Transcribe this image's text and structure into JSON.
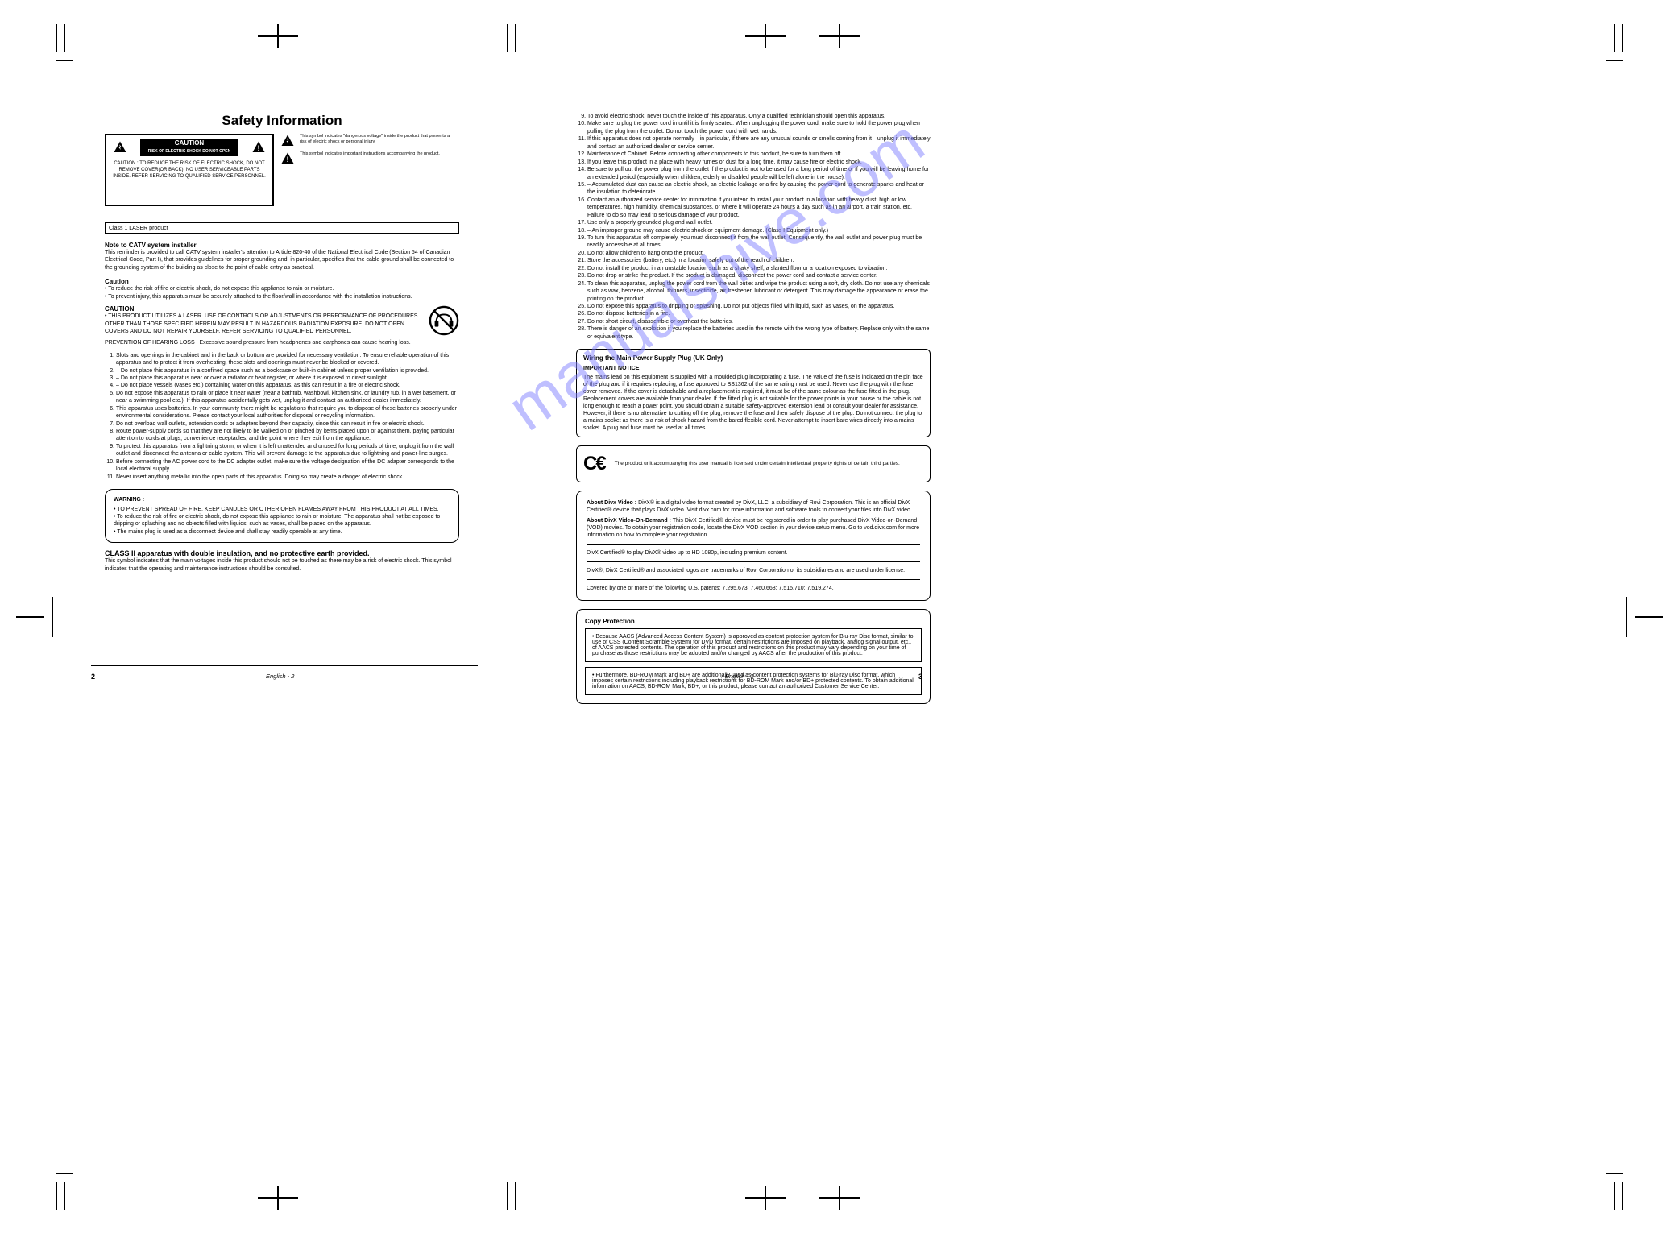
{
  "watermark": "manualshive.com",
  "left_page": {
    "title": "Safety Information",
    "caution_box": {
      "label_line1": "CAUTION",
      "label_line2": "RISK OF ELECTRIC SHOCK DO NOT OPEN",
      "body": "CAUTION : TO REDUCE THE RISK OF ELECTRIC SHOCK, DO NOT REMOVE COVER(OR BACK). NO USER SERVICEABLE PARTS INSIDE. REFER SERVICING TO QUALIFIED SERVICE PERSONNEL."
    },
    "icon_desc_1": "This symbol indicates \"dangerous voltage\" inside the product that presents a risk of electric shock or personal injury.",
    "icon_desc_2": "This symbol indicates important instructions accompanying the product.",
    "bar_text": "Class 1 LASER product",
    "note": "Note to CATV system installer",
    "note_body": "This reminder is provided to call CATV system installer's attention to Article 820-40 of the National Electrical Code (Section 54 of Canadian Electrical Code, Part I), that provides guidelines for proper grounding and, in particular, specifies that the cable ground shall be connected to the grounding system of the building as close to the point of cable entry as practical.",
    "caution_head": "Caution",
    "caution_body": "• To reduce the risk of fire or electric shock, do not expose this appliance to rain or moisture.\n• To prevent injury, this apparatus must be securely attached to the floor/wall in accordance with the installation instructions.",
    "caution2_head": "CAUTION",
    "caution2_body": "• THIS PRODUCT UTILIZES A LASER. USE OF CONTROLS OR ADJUSTMENTS OR PERFORMANCE OF PROCEDURES OTHER THAN THOSE SPECIFIED HEREIN MAY RESULT IN HAZARDOUS RADIATION EXPOSURE. DO NOT OPEN COVERS AND DO NOT REPAIR YOURSELF. REFER SERVICING TO QUALIFIED PERSONNEL.",
    "ol_items": [
      "Slots and openings in the cabinet and in the back or bottom are provided for necessary ventilation. To ensure reliable operation of this apparatus and to protect it from overheating, these slots and openings must never be blocked or covered.",
      "– Do not place this apparatus in a confined space such as a bookcase or built-in cabinet unless proper ventilation is provided.",
      "– Do not place this apparatus near or over a radiator or heat register, or where it is exposed to direct sunlight.",
      "– Do not place vessels (vases etc.) containing water on this apparatus, as this can result in a fire or electric shock.",
      "Do not expose this apparatus to rain or place it near water (near a bathtub, washbowl, kitchen sink, or laundry tub, in a wet basement, or near a swimming pool etc.). If this apparatus accidentally gets wet, unplug it and contact an authorized dealer immediately.",
      "This apparatus uses batteries. In your community there might be regulations that require you to dispose of these batteries properly under environmental considerations. Please contact your local authorities for disposal or recycling information.",
      "Do not overload wall outlets, extension cords or adapters beyond their capacity, since this can result in fire or electric shock.",
      "Route power-supply cords so that they are not likely to be walked on or pinched by items placed upon or against them, paying particular attention to cords at plugs, convenience receptacles, and the point where they exit from the appliance.",
      "To protect this apparatus from a lightning storm, or when it is left unattended and unused for long periods of time, unplug it from the wall outlet and disconnect the antenna or cable system. This will prevent damage to the apparatus due to lightning and power-line surges.",
      "Before connecting the AC power cord to the DC adapter outlet, make sure the voltage designation of the DC adapter corresponds to the local electrical supply.",
      "Never insert anything metallic into the open parts of this apparatus. Doing so may create a danger of electric shock."
    ],
    "headset_warning": "PREVENTION OF HEARING LOSS : Excessive sound pressure from headphones and earphones can cause hearing loss.",
    "class2_head": "CLASS II apparatus with double insulation, and no protective earth provided.",
    "class2_body": "This symbol indicates that the main voltages inside this product should not be touched as there may be a risk of electric shock. This symbol indicates that the operating and maintenance instructions should be consulted.",
    "rounded_box": {
      "head": "WARNING :",
      "body": "• TO PREVENT SPREAD OF FIRE, KEEP CANDLES OR OTHER OPEN FLAMES AWAY FROM THIS PRODUCT AT ALL TIMES.\n• To reduce the risk of fire or electric shock, do not expose this appliance to rain or moisture. The apparatus shall not be exposed to dripping or splashing and no objects filled with liquids, such as vases, shall be placed on the apparatus.\n• The mains plug is used as a disconnect device and shall stay readily operable at any time."
    },
    "footer": "English - 2",
    "page_num": "2"
  },
  "right_page": {
    "ol_items": [
      "To avoid electric shock, never touch the inside of this apparatus. Only a qualified technician should open this apparatus.",
      "Make sure to plug the power cord in until it is firmly seated. When unplugging the power cord, make sure to hold the power plug when pulling the plug from the outlet. Do not touch the power cord with wet hands.",
      "If this apparatus does not operate normally—in particular, if there are any unusual sounds or smells coming from it—unplug it immediately and contact an authorized dealer or service center.",
      "Maintenance of Cabinet. Before connecting other components to this product, be sure to turn them off.",
      "If you leave this product in a place with heavy fumes or dust for a long time, it may cause fire or electric shock.",
      "Be sure to pull out the power plug from the outlet if the product is not to be used for a long period of time or if you will be leaving home for an extended period (especially when children, elderly or disabled people will be left alone in the house).",
      "– Accumulated dust can cause an electric shock, an electric leakage or a fire by causing the power cord to generate sparks and heat or the insulation to deteriorate.",
      "Contact an authorized service center for information if you intend to install your product in a location with heavy dust, high or low temperatures, high humidity, chemical substances, or where it will operate 24 hours a day such as in an airport, a train station, etc. Failure to do so may lead to serious damage of your product.",
      "Use only a properly grounded plug and wall outlet.",
      "– An improper ground may cause electric shock or equipment damage. (Class I Equipment only.)",
      "To turn this apparatus off completely, you must disconnect it from the wall outlet. Consequently, the wall outlet and power plug must be readily accessible at all times.",
      "Do not allow children to hang onto the product.",
      "Store the accessories (battery, etc.) in a location safely out of the reach of children.",
      "Do not install the product in an unstable location such as a shaky shelf, a slanted floor or a location exposed to vibration.",
      "Do not drop or strike the product. If the product is damaged, disconnect the power cord and contact a service center.",
      "To clean this apparatus, unplug the power cord from the wall outlet and wipe the product using a soft, dry cloth. Do not use any chemicals such as wax, benzene, alcohol, thinners, insecticide, air freshener, lubricant or detergent. This may damage the appearance or erase the printing on the product.",
      "Do not expose this apparatus to dripping or splashing. Do not put objects filled with liquid, such as vases, on the apparatus.",
      "Do not dispose batteries in a fire.",
      "Do not short circuit, disassemble or overheat the batteries.",
      "There is danger of an explosion if you replace the batteries used in the remote with the wrong type of battery. Replace only with the same or equivalent type."
    ],
    "wiring_box": {
      "head": "Wiring the Main Power Supply Plug (UK Only)",
      "sub": "IMPORTANT NOTICE",
      "body": "The mains lead on this equipment is supplied with a moulded plug incorporating a fuse. The value of the fuse is indicated on the pin face of the plug and if it requires replacing, a fuse approved to BS1362 of the same rating must be used. Never use the plug with the fuse cover removed. If the cover is detachable and a replacement is required, it must be of the same colour as the fuse fitted in the plug. Replacement covers are available from your dealer. If the fitted plug is not suitable for the power points in your house or the cable is not long enough to reach a power point, you should obtain a suitable safety-approved extension lead or consult your dealer for assistance. However, if there is no alternative to cutting off the plug, remove the fuse and then safely dispose of the plug. Do not connect the plug to a mains socket as there is a risk of shock hazard from the bared flexible cord. Never attempt to insert bare wires directly into a mains socket. A plug and fuse must be used at all times."
    },
    "ce_box": "The product unit accompanying this user manual is licensed under certain intellectual property rights of certain third parties.",
    "legal": {
      "p1_head": "About Divx Video :",
      "p1": "DivX® is a digital video format created by DivX, LLC, a subsidiary of Rovi Corporation. This is an official DivX Certified® device that plays DivX video. Visit divx.com for more information and software tools to convert your files into DivX video.",
      "p2_head": "About DivX Video-On-Demand :",
      "p2": "This DivX Certified® device must be registered in order to play purchased DivX Video-on-Demand (VOD) movies. To obtain your registration code, locate the DivX VOD section in your device setup menu. Go to vod.divx.com for more information on how to complete your registration.",
      "p3": "DivX Certified® to play DivX® video up to HD 1080p, including premium content.",
      "p4": "DivX®, DivX Certified® and associated logos are trademarks of Rovi Corporation or its subsidiaries and are used under license.",
      "p5": "Covered by one or more of the following U.S. patents: 7,295,673; 7,460,668; 7,515,710; 7,519,274."
    },
    "protect": {
      "head": "Copy Protection",
      "row1": "• Because AACS (Advanced Access Content System) is approved as content protection system for Blu-ray Disc format, similar to use of CSS (Content Scramble System) for DVD format, certain restrictions are imposed on playback, analog signal output, etc., of AACS protected contents. The operation of this product and restrictions on this product may vary depending on your time of purchase as those restrictions may be adopted and/or changed by AACS after the production of this product.",
      "row2": "• Furthermore, BD-ROM Mark and BD+ are additionally used as content protection systems for Blu-ray Disc format, which imposes certain restrictions including playback restrictions for BD-ROM Mark and/or BD+ protected contents. To obtain additional information on AACS, BD-ROM Mark, BD+, or this product, please contact an authorized Customer Service Center."
    },
    "footer": "English - 3",
    "page_num": "3"
  }
}
